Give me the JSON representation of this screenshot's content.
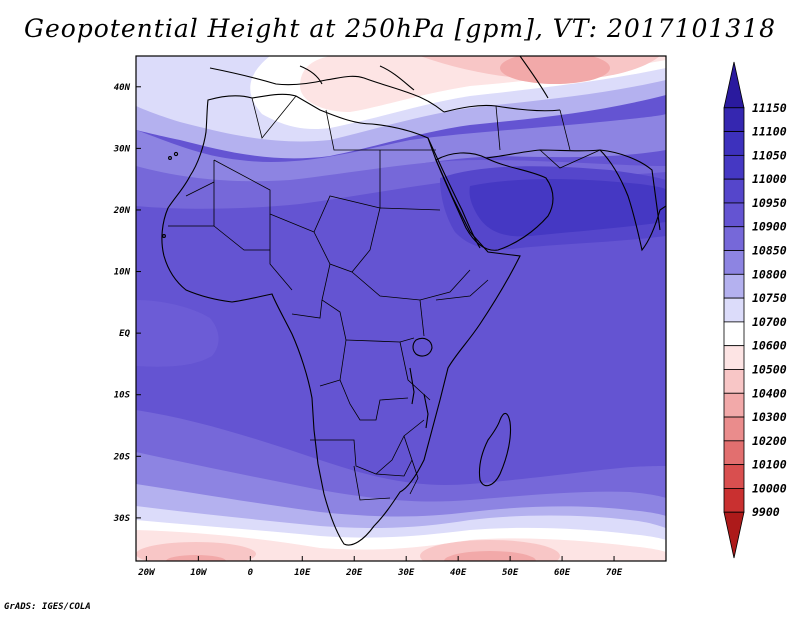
{
  "title": "Geopotential Height at 250hPa [gpm], VT: 2017101318",
  "credit": "GrADS: IGES/COLA",
  "map": {
    "lon_range": [
      -22,
      80
    ],
    "lat_range": [
      -37,
      45
    ],
    "lon_ticks": [
      {
        "label": "20W",
        "lon": -20
      },
      {
        "label": "10W",
        "lon": -10
      },
      {
        "label": "0",
        "lon": 0
      },
      {
        "label": "10E",
        "lon": 10
      },
      {
        "label": "20E",
        "lon": 20
      },
      {
        "label": "30E",
        "lon": 30
      },
      {
        "label": "40E",
        "lon": 40
      },
      {
        "label": "50E",
        "lon": 50
      },
      {
        "label": "60E",
        "lon": 60
      },
      {
        "label": "70E",
        "lon": 70
      }
    ],
    "lat_ticks": [
      {
        "label": "40N",
        "lat": 40
      },
      {
        "label": "30N",
        "lat": 30
      },
      {
        "label": "20N",
        "lat": 20
      },
      {
        "label": "10N",
        "lat": 10
      },
      {
        "label": "EQ",
        "lat": 0
      },
      {
        "label": "10S",
        "lat": -10
      },
      {
        "label": "20S",
        "lat": -20
      },
      {
        "label": "30S",
        "lat": -30
      }
    ]
  },
  "colorbar": {
    "levels": [
      "11150",
      "11100",
      "11050",
      "11000",
      "10950",
      "10900",
      "10850",
      "10800",
      "10750",
      "10700",
      "10600",
      "10500",
      "10400",
      "10300",
      "10200",
      "10100",
      "10000",
      "9900"
    ],
    "colors": [
      "#2a1a9e",
      "#3527b0",
      "#3d31bd",
      "#4538c3",
      "#5546cb",
      "#6454d2",
      "#7668d9",
      "#8d84e2",
      "#b4b1ef",
      "#dcdcfa",
      "#ffffff",
      "#fde4e4",
      "#f8c6c6",
      "#f2a9a9",
      "#ea8c8c",
      "#e26f6f",
      "#d94f4f",
      "#c93030",
      "#ad1a1a"
    ]
  }
}
